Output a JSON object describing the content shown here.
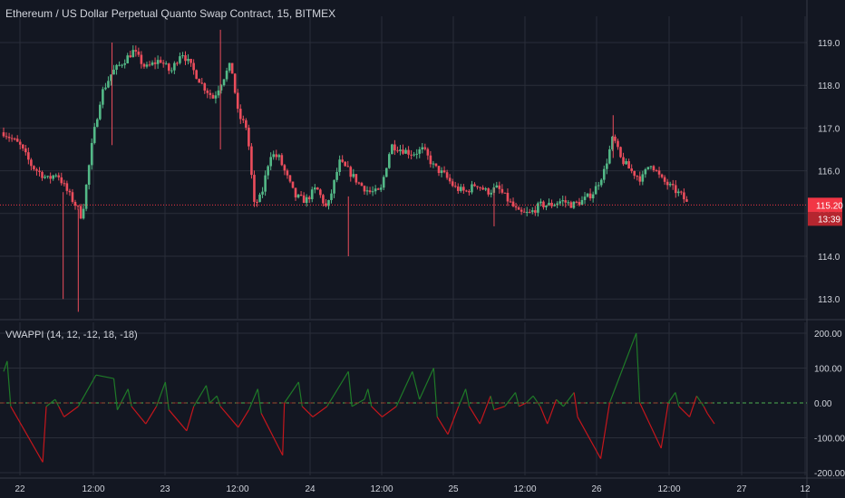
{
  "title": "Ethereum / US Dollar Perpetual Quanto Swap Contract, 15, BITMEX",
  "indicator_title": "VWAPPI (14, 12, -12, 18, -18)",
  "colors": {
    "background": "#131722",
    "grid": "#2a2e39",
    "text": "#d1d4dc",
    "candle_up": "#53b987",
    "candle_down": "#eb4d5c",
    "price_label": "#f23645",
    "ind_up": "#1f7a28",
    "ind_down": "#c4161c",
    "zero_dash": "#4caf50"
  },
  "chart_data": [
    {
      "type": "candlestick",
      "title": "Ethereum / US Dollar Perpetual Quanto Swap Contract, 15, BITMEX",
      "x_tick_labels": [
        "22",
        "12:00",
        "23",
        "12:00",
        "24",
        "12:00",
        "25",
        "12:00",
        "26",
        "12:00",
        "27",
        "12"
      ],
      "y_tick_labels": [
        "113.0",
        "114.0",
        "115.0",
        "116.0",
        "117.0",
        "118.0",
        "119.0"
      ],
      "ylim": [
        112.6,
        119.5
      ],
      "grid": true,
      "last_price": "115.20",
      "countdown": "13:39",
      "close_path": [
        [
          0,
          116.9
        ],
        [
          0.9,
          116.6
        ],
        [
          1.6,
          116.1
        ],
        [
          2.5,
          115.8
        ],
        [
          3.0,
          115.95
        ],
        [
          3.6,
          115.5
        ],
        [
          4.2,
          115.1
        ],
        [
          4.4,
          114.9
        ],
        [
          5.0,
          116.7
        ],
        [
          5.5,
          117.8
        ],
        [
          6.1,
          118.3
        ],
        [
          6.6,
          118.5
        ],
        [
          7.3,
          118.8
        ],
        [
          8.0,
          118.4
        ],
        [
          8.8,
          118.6
        ],
        [
          9.4,
          118.3
        ],
        [
          10.0,
          118.8
        ],
        [
          10.6,
          118.4
        ],
        [
          11.2,
          118.0
        ],
        [
          11.8,
          117.7
        ],
        [
          12.4,
          118.2
        ],
        [
          12.8,
          118.5
        ],
        [
          13.2,
          117.3
        ],
        [
          13.7,
          117.0
        ],
        [
          14.1,
          115.2
        ],
        [
          14.5,
          115.4
        ],
        [
          15.0,
          116.4
        ],
        [
          15.5,
          116.3
        ],
        [
          16.0,
          115.8
        ],
        [
          16.4,
          115.4
        ],
        [
          17.0,
          115.3
        ],
        [
          17.6,
          115.6
        ],
        [
          18.2,
          115.1
        ],
        [
          18.9,
          116.2
        ],
        [
          19.4,
          116.0
        ],
        [
          20.0,
          115.7
        ],
        [
          20.6,
          115.5
        ],
        [
          21.2,
          115.5
        ],
        [
          21.8,
          116.6
        ],
        [
          22.4,
          116.5
        ],
        [
          23.0,
          116.4
        ],
        [
          23.6,
          116.5
        ],
        [
          24.2,
          116.1
        ],
        [
          24.8,
          115.9
        ],
        [
          25.4,
          115.6
        ],
        [
          26.0,
          115.5
        ],
        [
          26.6,
          115.7
        ],
        [
          27.2,
          115.5
        ],
        [
          27.8,
          115.6
        ],
        [
          28.4,
          115.3
        ],
        [
          29.0,
          115.0
        ],
        [
          29.6,
          115.0
        ],
        [
          30.2,
          115.2
        ],
        [
          30.8,
          115.2
        ],
        [
          31.4,
          115.3
        ],
        [
          32.0,
          115.2
        ],
        [
          32.6,
          115.3
        ],
        [
          33.2,
          115.5
        ],
        [
          33.8,
          116.0
        ],
        [
          34.3,
          116.8
        ],
        [
          34.7,
          116.3
        ],
        [
          35.3,
          116.0
        ],
        [
          35.9,
          115.8
        ],
        [
          36.4,
          116.2
        ],
        [
          37.0,
          115.8
        ],
        [
          37.6,
          115.6
        ],
        [
          38.2,
          115.4
        ],
        [
          38.5,
          115.2
        ]
      ],
      "price_axis_value_labels": [
        "113.0",
        "114.0",
        "115.0",
        "116.0",
        "117.0",
        "118.0",
        "119.0"
      ]
    },
    {
      "type": "line",
      "title": "VWAPPI (14, 12, -12, 18, -18)",
      "y_tick_labels": [
        "-200.00",
        "-100.00",
        "0.00",
        "100.00",
        "200.00"
      ],
      "ylim": [
        -200,
        200
      ],
      "zero_line": 0,
      "values": [
        [
          0,
          90
        ],
        [
          0.2,
          120
        ],
        [
          0.4,
          -10
        ],
        [
          2.2,
          -170
        ],
        [
          2.4,
          -10
        ],
        [
          2.9,
          10
        ],
        [
          3.1,
          -10
        ],
        [
          3.4,
          -40
        ],
        [
          4.2,
          -10
        ],
        [
          5.2,
          80
        ],
        [
          6.2,
          70
        ],
        [
          6.4,
          -20
        ],
        [
          7.0,
          40
        ],
        [
          7.2,
          -10
        ],
        [
          8.0,
          -60
        ],
        [
          8.6,
          -10
        ],
        [
          9.1,
          60
        ],
        [
          9.3,
          -20
        ],
        [
          10.3,
          -80
        ],
        [
          10.7,
          -10
        ],
        [
          11.4,
          50
        ],
        [
          11.6,
          0
        ],
        [
          12.0,
          20
        ],
        [
          12.2,
          -10
        ],
        [
          13.2,
          -70
        ],
        [
          13.8,
          -20
        ],
        [
          14.3,
          40
        ],
        [
          14.5,
          -30
        ],
        [
          15.7,
          -150
        ],
        [
          15.8,
          0
        ],
        [
          16.6,
          60
        ],
        [
          16.8,
          -10
        ],
        [
          17.4,
          -40
        ],
        [
          18.2,
          -10
        ],
        [
          19.4,
          90
        ],
        [
          19.6,
          -10
        ],
        [
          20.3,
          10
        ],
        [
          20.5,
          40
        ],
        [
          20.7,
          -10
        ],
        [
          21.3,
          -40
        ],
        [
          22.1,
          -10
        ],
        [
          23.0,
          90
        ],
        [
          23.4,
          10
        ],
        [
          24.2,
          100
        ],
        [
          24.4,
          -40
        ],
        [
          25.0,
          -90
        ],
        [
          25.6,
          -10
        ],
        [
          26.0,
          40
        ],
        [
          26.2,
          -10
        ],
        [
          26.8,
          -60
        ],
        [
          27.4,
          20
        ],
        [
          27.6,
          -20
        ],
        [
          28.2,
          -10
        ],
        [
          28.8,
          30
        ],
        [
          29.0,
          -10
        ],
        [
          29.4,
          0
        ],
        [
          29.8,
          20
        ],
        [
          30.2,
          -10
        ],
        [
          30.6,
          -60
        ],
        [
          31.1,
          10
        ],
        [
          31.5,
          -10
        ],
        [
          32.1,
          30
        ],
        [
          32.3,
          -40
        ],
        [
          33.6,
          -160
        ],
        [
          34.1,
          0
        ],
        [
          35.6,
          200
        ],
        [
          35.8,
          0
        ],
        [
          37.0,
          -130
        ],
        [
          37.4,
          0
        ],
        [
          37.8,
          30
        ],
        [
          38.0,
          -10
        ],
        [
          38.6,
          -40
        ],
        [
          39.0,
          20
        ],
        [
          39.4,
          -10
        ],
        [
          39.6,
          -30
        ],
        [
          40.0,
          -60
        ]
      ]
    }
  ]
}
